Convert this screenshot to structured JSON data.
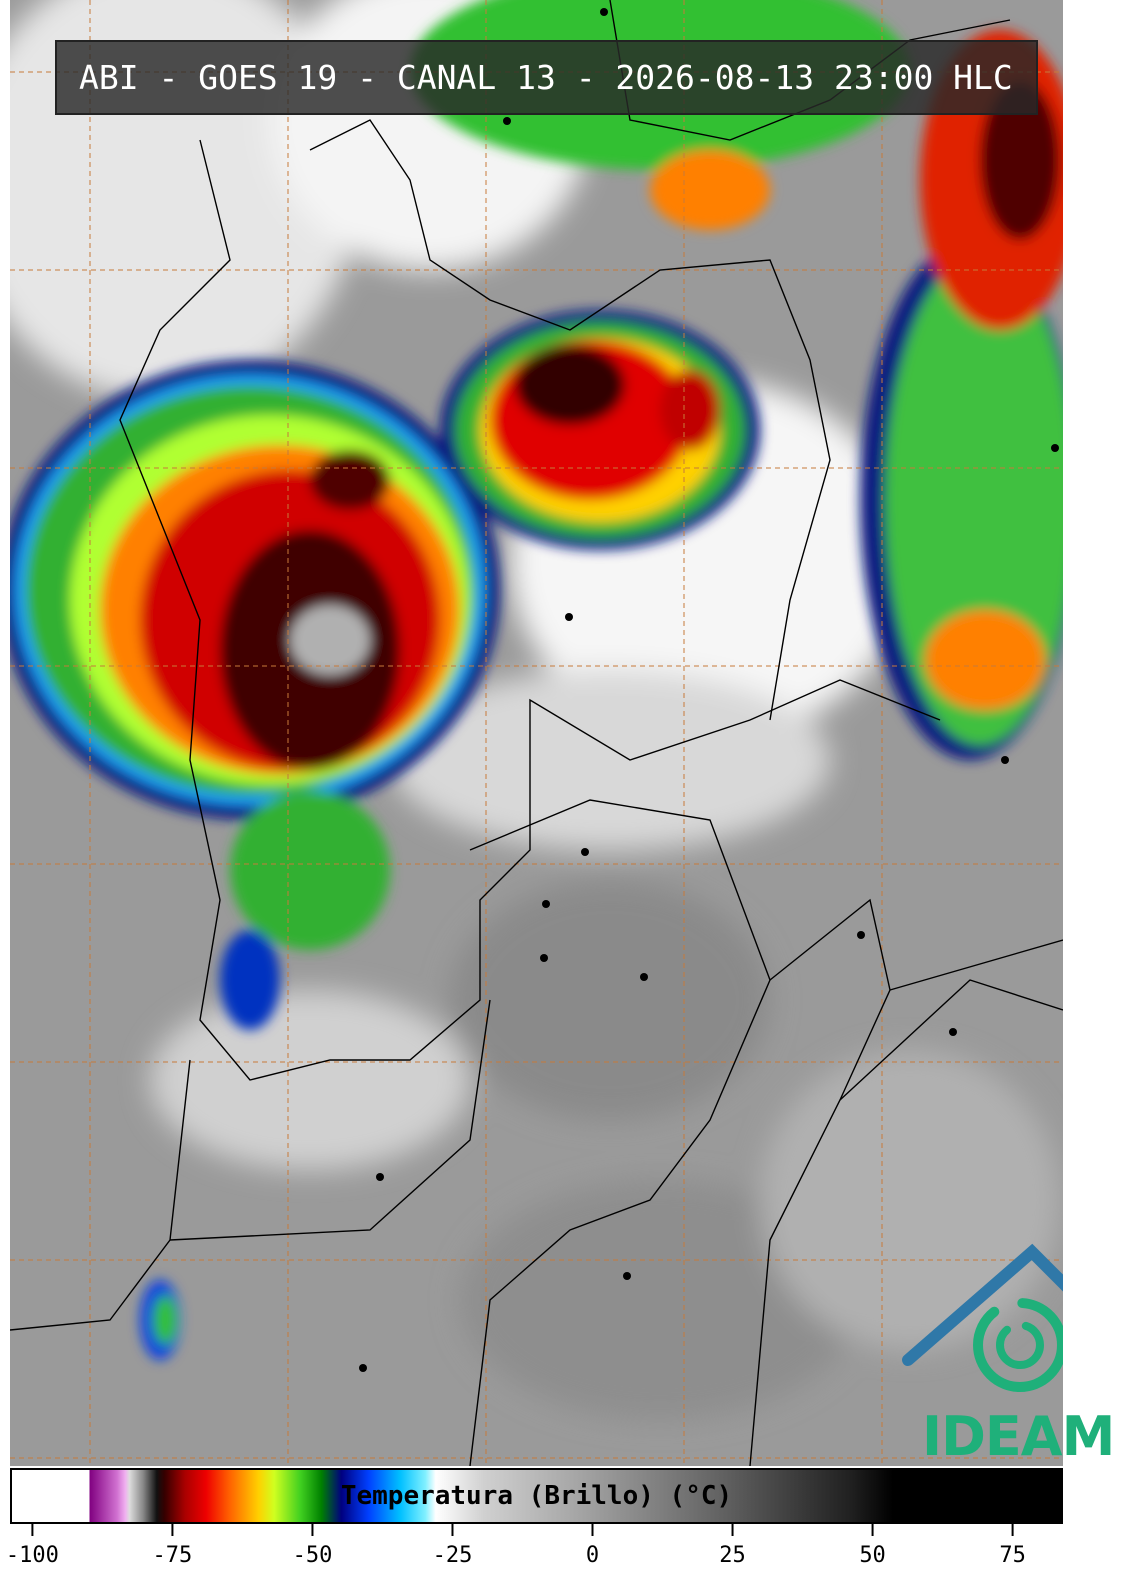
{
  "header": {
    "title": "ABI - GOES 19 - CANAL 13 - 2026-08-13 23:00 HLC"
  },
  "colorbar": {
    "label": "Temperatura (Brillo) (°C)",
    "xlim": [
      -104,
      84
    ],
    "xticks": [
      -100,
      -75,
      -50,
      -25,
      0,
      25,
      50,
      75
    ]
  },
  "logo": {
    "text": "IDEAM"
  }
}
